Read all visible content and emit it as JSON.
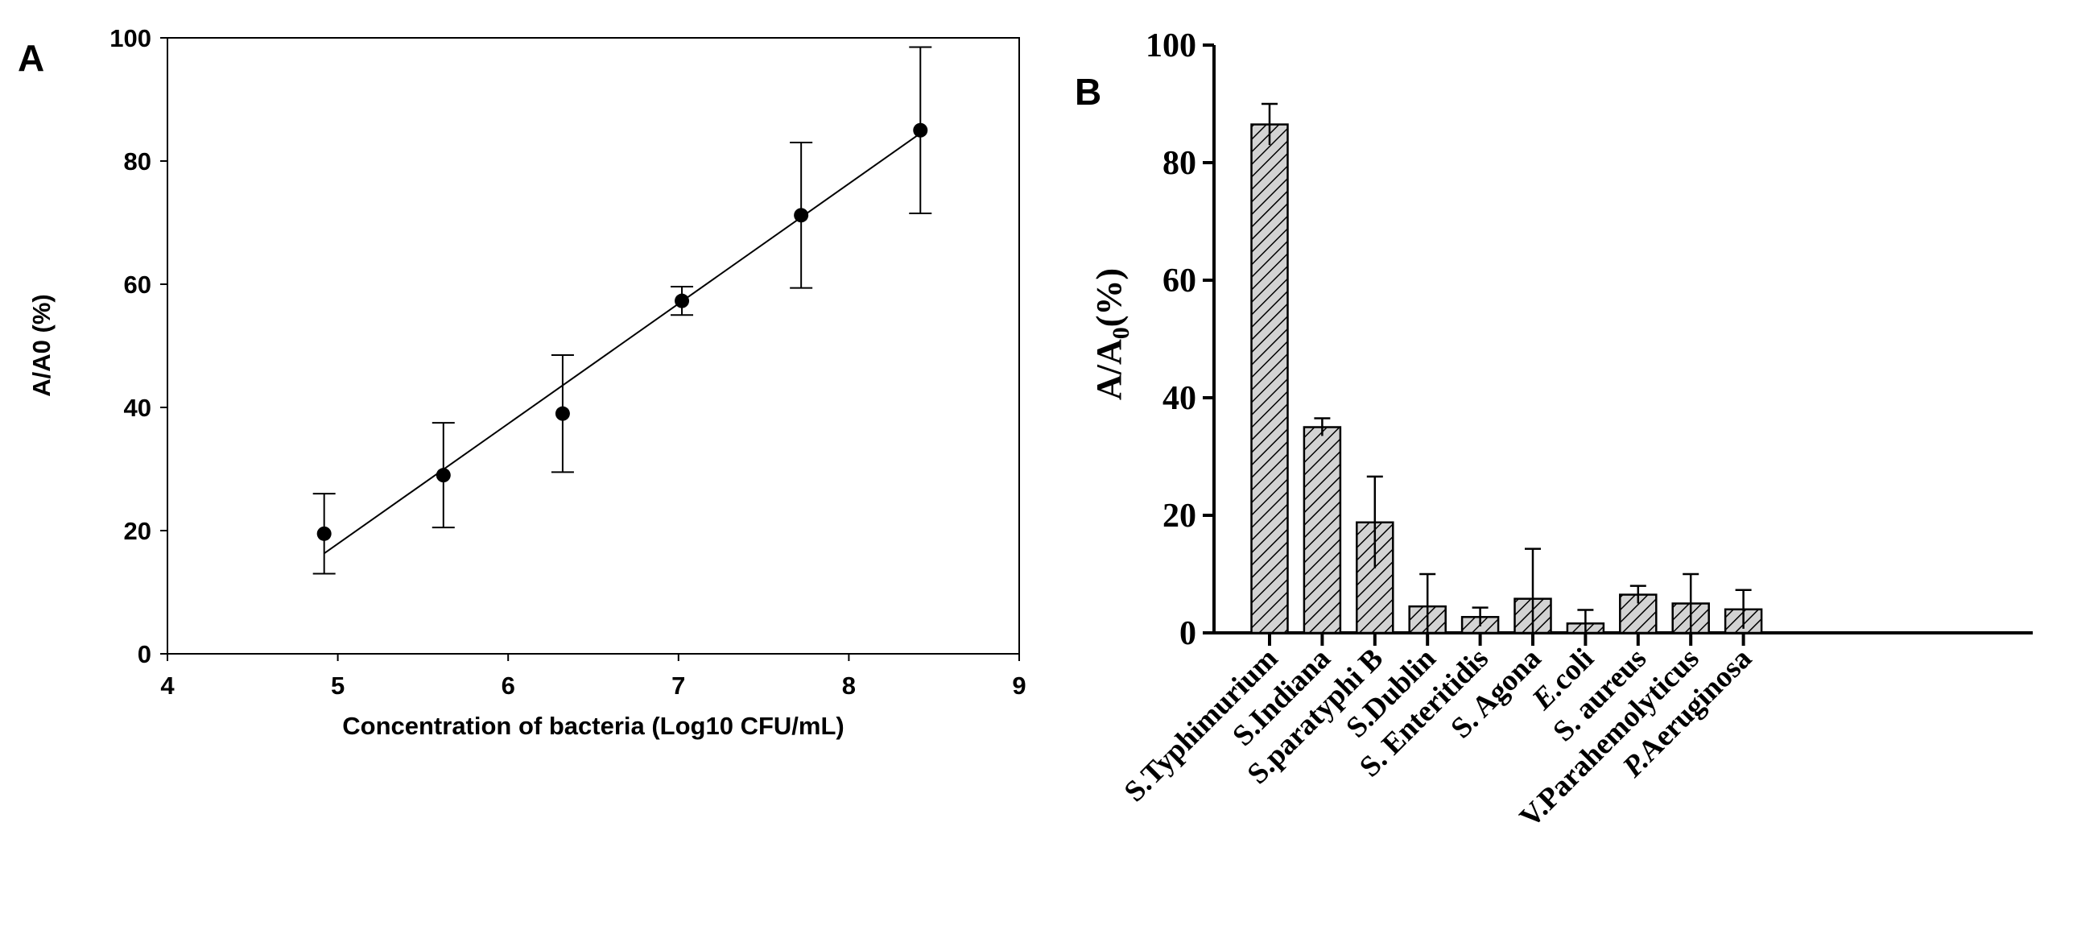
{
  "panels": {
    "a_label": "A",
    "b_label": "B"
  },
  "colors": {
    "ink": "#000000",
    "bar_fill": "#d3d3d3",
    "background": "#ffffff"
  },
  "chart_data": [
    {
      "type": "scatter",
      "panel": "A",
      "xlabel": "Concentration of bacteria (Log10 CFU/mL)",
      "ylabel": "A/A0 (%)",
      "xlim": [
        4,
        9
      ],
      "ylim": [
        0,
        100
      ],
      "xticks": [
        4,
        5,
        6,
        7,
        8,
        9
      ],
      "yticks": [
        0,
        20,
        40,
        60,
        80,
        100
      ],
      "grid": false,
      "points": [
        {
          "x": 4.92,
          "y": 19.5,
          "err": 6.5
        },
        {
          "x": 5.62,
          "y": 29.0,
          "err": 8.5
        },
        {
          "x": 6.32,
          "y": 39.0,
          "err": 9.5
        },
        {
          "x": 7.02,
          "y": 57.3,
          "err": 2.3
        },
        {
          "x": 7.72,
          "y": 71.2,
          "err": 11.8
        },
        {
          "x": 8.42,
          "y": 85.0,
          "err": 13.5
        }
      ],
      "fit_line": {
        "x0": 4.92,
        "y0": 16.3,
        "x1": 8.42,
        "y1": 84.5
      }
    },
    {
      "type": "bar",
      "panel": "B",
      "ylabel_main": "A/A",
      "ylabel_sub": "0",
      "ylabel_tail": "(%)",
      "ylim": [
        0,
        100
      ],
      "yticks": [
        0,
        20,
        40,
        60,
        80,
        100
      ],
      "grid": false,
      "categories": [
        "S.Typhimurium",
        "S.Indiana",
        "S.paratyphi B",
        "S.Dublin",
        "S. Enteritidis",
        "S. Agona",
        "E.coli",
        "S. aureus",
        "V.Parahemolyticus",
        "P.Aeruginosa"
      ],
      "values": [
        86.5,
        35.0,
        18.8,
        4.5,
        2.7,
        5.8,
        1.6,
        6.5,
        5.0,
        4.0
      ],
      "errors": [
        3.5,
        1.5,
        7.8,
        5.5,
        1.6,
        8.5,
        2.3,
        1.5,
        5.0,
        3.3
      ]
    }
  ]
}
